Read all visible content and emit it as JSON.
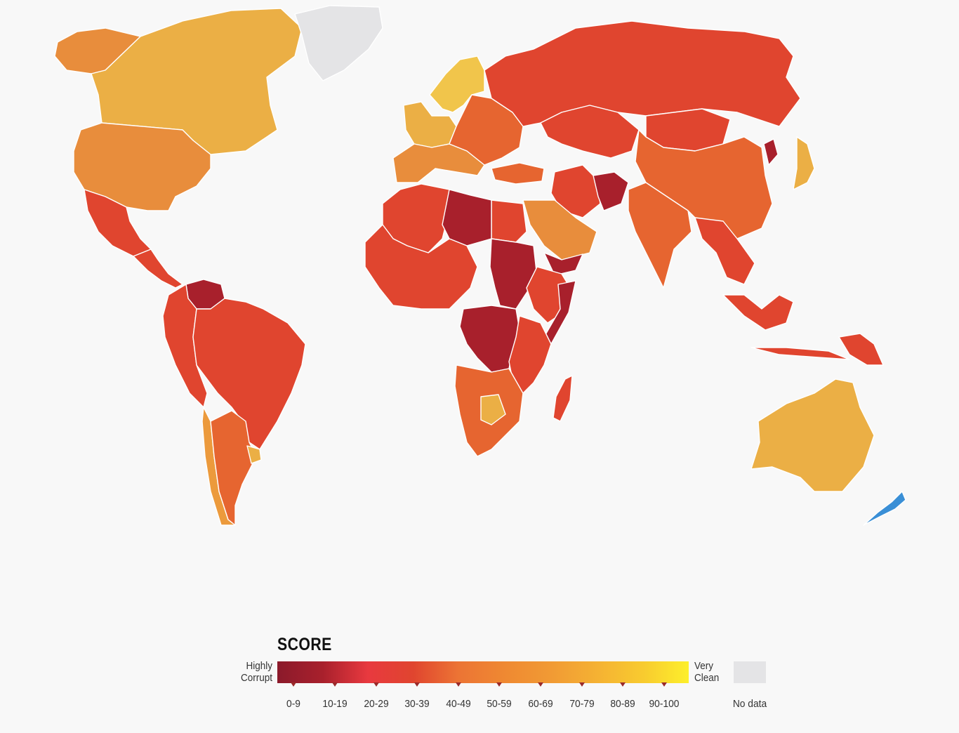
{
  "legend": {
    "title": "SCORE",
    "low_label_line1": "Highly",
    "low_label_line2": "Corrupt",
    "high_label_line1": "Very",
    "high_label_line2": "Clean",
    "no_data_label": "No data",
    "ranges": [
      "0-9",
      "10-19",
      "20-29",
      "30-39",
      "40-49",
      "50-59",
      "60-69",
      "70-79",
      "80-89",
      "90-100"
    ],
    "colors": [
      "#8b1a2b",
      "#a8202c",
      "#e8393f",
      "#e0452f",
      "#ec7434",
      "#ef8a32",
      "#f19b34",
      "#f5b233",
      "#f8cb2f",
      "#fdef2b"
    ],
    "no_data_color": "#e4e4e6"
  },
  "regions": [
    {
      "name": "Canada",
      "color": "#ebaf45"
    },
    {
      "name": "Alaska",
      "color": "#e88d3c"
    },
    {
      "name": "Greenland",
      "color": "#e4e4e6"
    },
    {
      "name": "United States",
      "color": "#e88d3c"
    },
    {
      "name": "Mexico",
      "color": "#e0452f"
    },
    {
      "name": "Central America",
      "color": "#e0452f"
    },
    {
      "name": "Venezuela",
      "color": "#a8202c"
    },
    {
      "name": "Brazil",
      "color": "#e0452f"
    },
    {
      "name": "Andean South America",
      "color": "#e0452f"
    },
    {
      "name": "Chile",
      "color": "#ec9a3c"
    },
    {
      "name": "Argentina",
      "color": "#e66530"
    },
    {
      "name": "Uruguay",
      "color": "#ebaf45"
    },
    {
      "name": "Scandinavia",
      "color": "#f1c54b"
    },
    {
      "name": "Western Europe",
      "color": "#ebaf45"
    },
    {
      "name": "Southern Europe",
      "color": "#e88d3c"
    },
    {
      "name": "Eastern Europe",
      "color": "#e66530"
    },
    {
      "name": "Russia",
      "color": "#e0452f"
    },
    {
      "name": "Central Asia",
      "color": "#e0452f"
    },
    {
      "name": "Mongolia",
      "color": "#e0452f"
    },
    {
      "name": "China",
      "color": "#e66530"
    },
    {
      "name": "Japan",
      "color": "#ebaf45"
    },
    {
      "name": "North Korea",
      "color": "#a8202c"
    },
    {
      "name": "Turkey",
      "color": "#e66530"
    },
    {
      "name": "Iran",
      "color": "#e0452f"
    },
    {
      "name": "Afghanistan",
      "color": "#a8202c"
    },
    {
      "name": "Arabian Peninsula",
      "color": "#e88d3c"
    },
    {
      "name": "Yemen",
      "color": "#a8202c"
    },
    {
      "name": "India",
      "color": "#e66530"
    },
    {
      "name": "Southeast Asia",
      "color": "#e0452f"
    },
    {
      "name": "Indonesia",
      "color": "#e0452f"
    },
    {
      "name": "Papua New Guinea",
      "color": "#e0452f"
    },
    {
      "name": "Australia",
      "color": "#ebaf45"
    },
    {
      "name": "New Zealand",
      "color": "#3a8fd6"
    },
    {
      "name": "North Africa",
      "color": "#e0452f"
    },
    {
      "name": "Libya",
      "color": "#a8202c"
    },
    {
      "name": "West Africa",
      "color": "#e0452f"
    },
    {
      "name": "Sudan",
      "color": "#a8202c"
    },
    {
      "name": "Horn of Africa",
      "color": "#e0452f"
    },
    {
      "name": "Somalia",
      "color": "#a8202c"
    },
    {
      "name": "DR Congo",
      "color": "#a8202c"
    },
    {
      "name": "East Africa",
      "color": "#e0452f"
    },
    {
      "name": "Southern Africa",
      "color": "#e66530"
    },
    {
      "name": "Botswana",
      "color": "#ebaf45"
    },
    {
      "name": "Madagascar",
      "color": "#e0452f"
    }
  ]
}
